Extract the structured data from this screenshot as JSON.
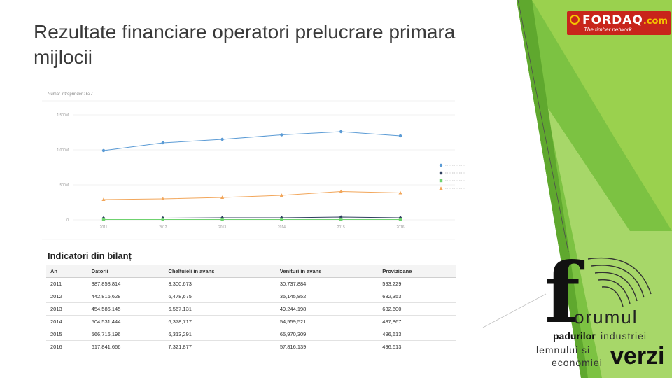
{
  "slide": {
    "title": "Rezultate financiare operatori prelucrare primara mijlocii"
  },
  "logos": {
    "fordaq": {
      "brand": "FORDAQ",
      "domain": ".com",
      "tagline": "The timber network",
      "color": "#c8251b",
      "accent": "#f5c400"
    },
    "forum": {
      "line1": "orumul",
      "line2a": "padurilor",
      "line2b": "industriei",
      "line3": "lemnului si",
      "line4": "economiei",
      "line5": "verzi"
    }
  },
  "chart_data": {
    "type": "line",
    "title": "Numar intreprinderi: 537",
    "x": [
      "2011",
      "2012",
      "2013",
      "2014",
      "2015",
      "2016"
    ],
    "y_ticks": [
      {
        "value": 0,
        "label": "0"
      },
      {
        "value": 500,
        "label": "500M"
      },
      {
        "value": 1000,
        "label": "1.000M"
      },
      {
        "value": 1500,
        "label": "1.500M"
      }
    ],
    "ylim": [
      0,
      1600
    ],
    "grid": true,
    "legend_position": "right",
    "series": [
      {
        "values": [
          990,
          1100,
          1150,
          1215,
          1260,
          1200
        ],
        "color": "#5b9bd5",
        "marker": "circle"
      },
      {
        "values": [
          25,
          25,
          30,
          30,
          40,
          30
        ],
        "color": "#2f3f5f",
        "marker": "diamond"
      },
      {
        "values": [
          5,
          5,
          5,
          5,
          5,
          5
        ],
        "color": "#6fd26f",
        "marker": "square"
      },
      {
        "values": [
          290,
          300,
          320,
          350,
          405,
          385
        ],
        "color": "#f2a65a",
        "marker": "triangle"
      }
    ]
  },
  "table": {
    "title": "Indicatori din bilanț",
    "headers": [
      "An",
      "Datorii",
      "Cheltuieli in avans",
      "Venituri in avans",
      "Provizioane"
    ],
    "rows": [
      [
        "2011",
        "387,858,814",
        "3,300,673",
        "30,737,884",
        "593,229"
      ],
      [
        "2012",
        "442,816,628",
        "6,478,675",
        "35,145,852",
        "682,353"
      ],
      [
        "2013",
        "454,586,145",
        "6,567,131",
        "49,244,198",
        "632,600"
      ],
      [
        "2014",
        "504,531,444",
        "6,378,717",
        "54,559,521",
        "487,867"
      ],
      [
        "2015",
        "566,716,196",
        "6,313,291",
        "65,970,309",
        "496,613"
      ],
      [
        "2016",
        "617,841,666",
        "7,321,877",
        "57,816,139",
        "496,613"
      ]
    ]
  }
}
